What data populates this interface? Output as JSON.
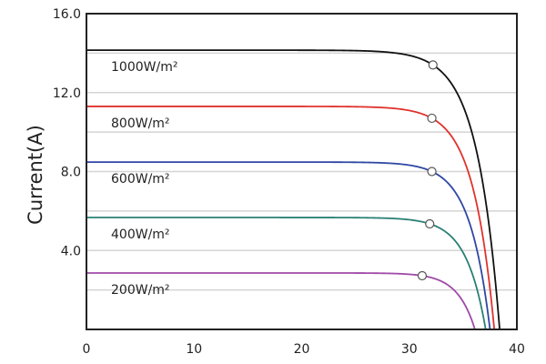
{
  "chart_data": {
    "type": "line",
    "title": "",
    "xlabel": "",
    "ylabel": "Current(A)",
    "xlim": [
      0,
      40
    ],
    "ylim": [
      0,
      16
    ],
    "x_ticks": [
      "0",
      "10",
      "20",
      "30",
      "40"
    ],
    "y_ticks": [
      "4.0",
      "8.0",
      "12.0",
      "16.0"
    ],
    "grid": "horizontal, every 2.0 A",
    "legend": "inline labels",
    "series": [
      {
        "name": "1000W/m²",
        "color": "#111111",
        "isc": 14.15,
        "voc": 38.4,
        "mpp": [
          32.2,
          13.4
        ]
      },
      {
        "name": "800W/m²",
        "color": "#e0332d",
        "isc": 11.3,
        "voc": 37.9,
        "mpp": [
          32.1,
          10.7
        ]
      },
      {
        "name": "600W/m²",
        "color": "#2f47a3",
        "isc": 8.48,
        "voc": 37.5,
        "mpp": [
          32.1,
          8.0
        ]
      },
      {
        "name": "400W/m²",
        "color": "#2a8075",
        "isc": 5.67,
        "voc": 37.1,
        "mpp": [
          31.9,
          5.35
        ]
      },
      {
        "name": "200W/m²",
        "color": "#a04aa8",
        "isc": 2.86,
        "voc": 36.1,
        "mpp": [
          31.2,
          2.72
        ]
      }
    ]
  }
}
